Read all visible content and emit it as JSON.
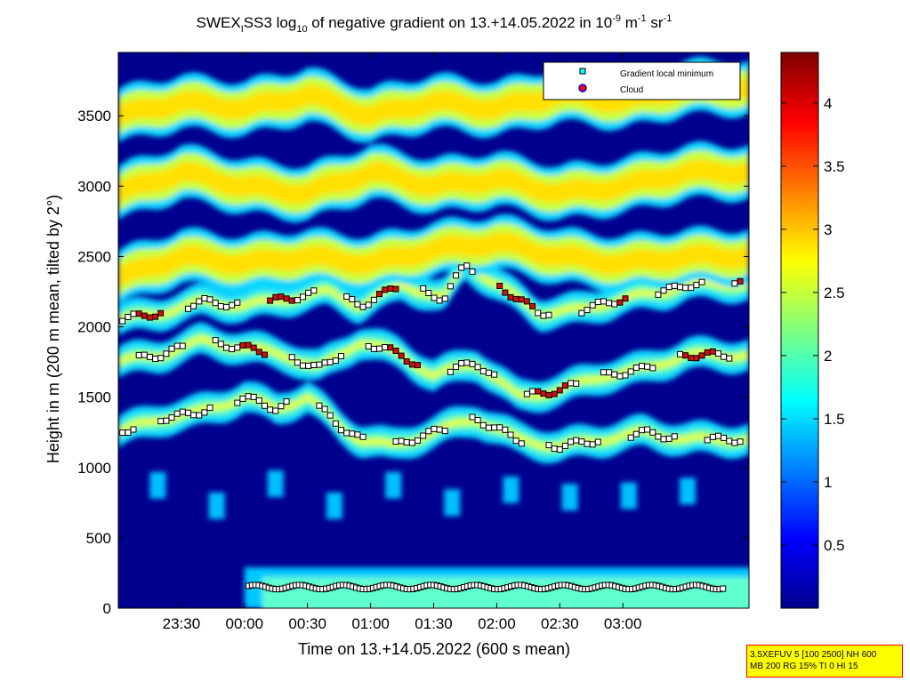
{
  "chart_data": {
    "type": "heatmap",
    "title": {
      "prefix": "SWEX",
      "prefix_sub": "I",
      "mid1": "SS3 log",
      "sub10": "10",
      "mid2": " of negative gradient on 13.+14.05.2022 in 10",
      "sup_exp": "-9",
      "unit_m": " m",
      "sup_m": "-1",
      "unit_sr": " sr",
      "sup_sr": "-1"
    },
    "xlabel": "Time on 13.+14.05.2022 (600 s mean)",
    "ylabel": "Height in m (200 m mean, tilted by 2°)",
    "x_ticks": [
      "23:30",
      "00:00",
      "00:30",
      "01:00",
      "01:30",
      "02:00",
      "02:30",
      "03:00"
    ],
    "x_tick_minutes": [
      -30,
      0,
      30,
      60,
      90,
      120,
      150,
      180
    ],
    "x_range_minutes": [
      -60,
      240
    ],
    "y_ticks": [
      0,
      500,
      1000,
      1500,
      2000,
      2500,
      3000,
      3500
    ],
    "y_range": [
      0,
      3950
    ],
    "colorbar": {
      "ticks": [
        "0.5",
        "1",
        "1.5",
        "2",
        "2.5",
        "3",
        "3.5",
        "4"
      ],
      "tick_values": [
        0.5,
        1,
        1.5,
        2,
        2.5,
        3,
        3.5,
        4
      ],
      "range": [
        0,
        4.4
      ],
      "colormap": "jet"
    },
    "legend": {
      "position": "top-right",
      "entries": [
        {
          "label": "Gradient local minimum",
          "marker": "square",
          "color": "#00ffff"
        },
        {
          "label": "Cloud",
          "marker": "circle",
          "color": "#ff0000"
        }
      ]
    },
    "layers": [
      {
        "type": "surface",
        "y": 150,
        "t_start": 0,
        "t_end": 300
      },
      {
        "type": "layer",
        "points": [
          [
            -60,
            1250
          ],
          [
            -40,
            1350
          ],
          [
            -25,
            1380
          ],
          [
            -10,
            1450
          ],
          [
            0,
            1500
          ],
          [
            15,
            1420
          ],
          [
            30,
            1500
          ],
          [
            45,
            1300
          ],
          [
            55,
            1200
          ],
          [
            70,
            1150
          ],
          [
            90,
            1250
          ],
          [
            110,
            1350
          ],
          [
            130,
            1200
          ],
          [
            150,
            1150
          ],
          [
            170,
            1200
          ],
          [
            190,
            1250
          ],
          [
            210,
            1200
          ]
        ]
      },
      {
        "type": "layer",
        "points": [
          [
            -60,
            1750
          ],
          [
            -40,
            1800
          ],
          [
            -20,
            1900
          ],
          [
            0,
            1850
          ],
          [
            20,
            1800
          ],
          [
            35,
            1700
          ],
          [
            55,
            1900
          ],
          [
            75,
            1800
          ],
          [
            90,
            1650
          ],
          [
            110,
            1750
          ],
          [
            130,
            1500
          ],
          [
            150,
            1550
          ],
          [
            170,
            1650
          ],
          [
            190,
            1700
          ],
          [
            210,
            1800
          ]
        ]
      },
      {
        "type": "layer",
        "points": [
          [
            -60,
            2050
          ],
          [
            -40,
            2100
          ],
          [
            -20,
            2180
          ],
          [
            0,
            2150
          ],
          [
            20,
            2200
          ],
          [
            40,
            2250
          ],
          [
            55,
            2150
          ],
          [
            75,
            2300
          ],
          [
            95,
            2200
          ],
          [
            105,
            2450
          ],
          [
            120,
            2300
          ],
          [
            140,
            2100
          ],
          [
            160,
            2120
          ],
          [
            180,
            2200
          ],
          [
            200,
            2250
          ],
          [
            210,
            2300
          ]
        ]
      },
      {
        "type": "layer",
        "points": [
          [
            -60,
            2350
          ],
          [
            -30,
            2500
          ],
          [
            0,
            2450
          ],
          [
            30,
            2500
          ],
          [
            60,
            2450
          ],
          [
            90,
            2550
          ],
          [
            120,
            2600
          ],
          [
            150,
            2500
          ],
          [
            180,
            2450
          ],
          [
            210,
            2500
          ]
        ]
      },
      {
        "type": "layer",
        "points": [
          [
            -60,
            2950
          ],
          [
            -30,
            3100
          ],
          [
            0,
            3000
          ],
          [
            30,
            2950
          ],
          [
            60,
            3100
          ],
          [
            90,
            3000
          ],
          [
            120,
            3050
          ],
          [
            150,
            2950
          ],
          [
            180,
            3000
          ],
          [
            210,
            3100
          ]
        ]
      },
      {
        "type": "layer",
        "points": [
          [
            -60,
            3500
          ],
          [
            -30,
            3600
          ],
          [
            0,
            3550
          ],
          [
            30,
            3650
          ],
          [
            60,
            3500
          ],
          [
            90,
            3600
          ],
          [
            120,
            3550
          ],
          [
            150,
            3650
          ],
          [
            180,
            3600
          ],
          [
            210,
            3700
          ]
        ]
      }
    ]
  },
  "info_box": {
    "line1": "3.5XEFUV 5 [100 2500] NH 600",
    "line2": "MB 200 RG 15% TI 0 HI 15"
  }
}
